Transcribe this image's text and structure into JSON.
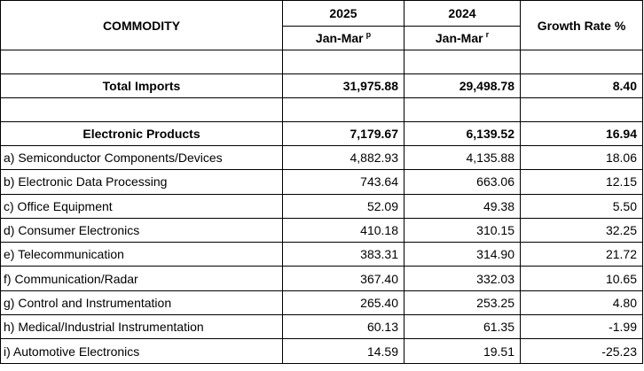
{
  "header": {
    "commodity": "COMMODITY",
    "year1": "2025",
    "year2": "2024",
    "growth": "Growth Rate %",
    "period1": "Jan-Mar",
    "period1_sup": "p",
    "period2": "Jan-Mar",
    "period2_sup": "r"
  },
  "total": {
    "label": "Total Imports",
    "v2025": "31,975.88",
    "v2024": "29,498.78",
    "growth": "8.40"
  },
  "group": {
    "label": "Electronic Products",
    "v2025": "7,179.67",
    "v2024": "6,139.52",
    "growth": "16.94"
  },
  "rows": [
    {
      "label": "a) Semiconductor Components/Devices",
      "v2025": "4,882.93",
      "v2024": "4,135.88",
      "growth": "18.06"
    },
    {
      "label": "b) Electronic Data Processing",
      "v2025": "743.64",
      "v2024": "663.06",
      "growth": "12.15"
    },
    {
      "label": "c) Office Equipment",
      "v2025": "52.09",
      "v2024": "49.38",
      "growth": "5.50"
    },
    {
      "label": "d) Consumer Electronics",
      "v2025": "410.18",
      "v2024": "310.15",
      "growth": "32.25"
    },
    {
      "label": "e) Telecommunication",
      "v2025": "383.31",
      "v2024": "314.90",
      "growth": "21.72"
    },
    {
      "label": "f) Communication/Radar",
      "v2025": "367.40",
      "v2024": "332.03",
      "growth": "10.65"
    },
    {
      "label": "g) Control and Instrumentation",
      "v2025": "265.40",
      "v2024": "253.25",
      "growth": "4.80"
    },
    {
      "label": "h) Medical/Industrial Instrumentation",
      "v2025": "60.13",
      "v2024": "61.35",
      "growth": "-1.99"
    },
    {
      "label": "i) Automotive Electronics",
      "v2025": "14.59",
      "v2024": "19.51",
      "growth": "-25.23"
    }
  ]
}
